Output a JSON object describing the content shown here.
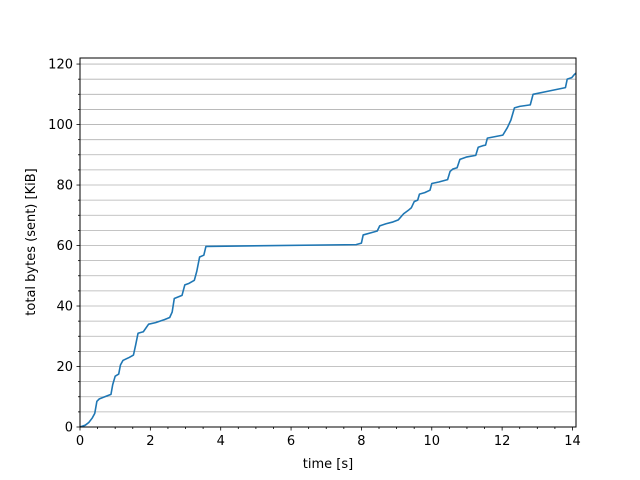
{
  "chart_data": {
    "type": "line",
    "xlabel": "time [s]",
    "ylabel": "total bytes (sent) [KiB]",
    "xlim": [
      0,
      14.1
    ],
    "ylim": [
      0,
      122
    ],
    "x_ticks": [
      0,
      2,
      4,
      6,
      8,
      10,
      12,
      14
    ],
    "y_ticks": [
      0,
      20,
      40,
      60,
      80,
      100,
      120
    ],
    "x_minor_step": 0.5,
    "y_grid_step": 5,
    "grid": "horizontal",
    "line_color": "#1f77b4",
    "series": [
      {
        "points": [
          [
            0.0,
            0.0
          ],
          [
            0.15,
            0.6
          ],
          [
            0.25,
            1.5
          ],
          [
            0.35,
            3.0
          ],
          [
            0.42,
            4.5
          ],
          [
            0.48,
            8.5
          ],
          [
            0.55,
            9.3
          ],
          [
            0.75,
            10.2
          ],
          [
            0.88,
            10.8
          ],
          [
            0.93,
            14.0
          ],
          [
            1.0,
            16.8
          ],
          [
            1.1,
            17.5
          ],
          [
            1.15,
            20.5
          ],
          [
            1.22,
            22.0
          ],
          [
            1.4,
            23.0
          ],
          [
            1.52,
            23.8
          ],
          [
            1.58,
            27.0
          ],
          [
            1.65,
            31.0
          ],
          [
            1.8,
            31.5
          ],
          [
            1.95,
            34.0
          ],
          [
            2.15,
            34.5
          ],
          [
            2.4,
            35.5
          ],
          [
            2.55,
            36.2
          ],
          [
            2.62,
            38.0
          ],
          [
            2.68,
            42.5
          ],
          [
            2.9,
            43.5
          ],
          [
            2.98,
            47.0
          ],
          [
            3.1,
            47.5
          ],
          [
            3.25,
            48.5
          ],
          [
            3.32,
            51.5
          ],
          [
            3.4,
            56.2
          ],
          [
            3.52,
            56.8
          ],
          [
            3.58,
            59.7
          ],
          [
            7.85,
            60.3
          ],
          [
            8.0,
            60.8
          ],
          [
            8.05,
            63.5
          ],
          [
            8.3,
            64.3
          ],
          [
            8.45,
            64.8
          ],
          [
            8.52,
            66.5
          ],
          [
            8.7,
            67.2
          ],
          [
            8.9,
            67.8
          ],
          [
            9.05,
            68.5
          ],
          [
            9.2,
            70.5
          ],
          [
            9.35,
            71.8
          ],
          [
            9.42,
            72.5
          ],
          [
            9.5,
            74.5
          ],
          [
            9.6,
            75.0
          ],
          [
            9.65,
            77.0
          ],
          [
            9.8,
            77.5
          ],
          [
            9.95,
            78.3
          ],
          [
            10.0,
            80.5
          ],
          [
            10.2,
            81.0
          ],
          [
            10.45,
            81.8
          ],
          [
            10.52,
            84.5
          ],
          [
            10.6,
            85.3
          ],
          [
            10.72,
            85.7
          ],
          [
            10.8,
            88.5
          ],
          [
            11.0,
            89.3
          ],
          [
            11.25,
            89.8
          ],
          [
            11.32,
            92.5
          ],
          [
            11.45,
            93.0
          ],
          [
            11.53,
            93.2
          ],
          [
            11.58,
            95.5
          ],
          [
            11.8,
            96.0
          ],
          [
            12.02,
            96.5
          ],
          [
            12.15,
            99.0
          ],
          [
            12.25,
            101.5
          ],
          [
            12.35,
            105.5
          ],
          [
            12.5,
            106.0
          ],
          [
            12.8,
            106.5
          ],
          [
            12.88,
            110.0
          ],
          [
            13.3,
            111.0
          ],
          [
            13.8,
            112.2
          ],
          [
            13.85,
            115.0
          ],
          [
            13.98,
            115.5
          ],
          [
            14.05,
            116.5
          ],
          [
            14.1,
            117.0
          ]
        ]
      }
    ]
  }
}
